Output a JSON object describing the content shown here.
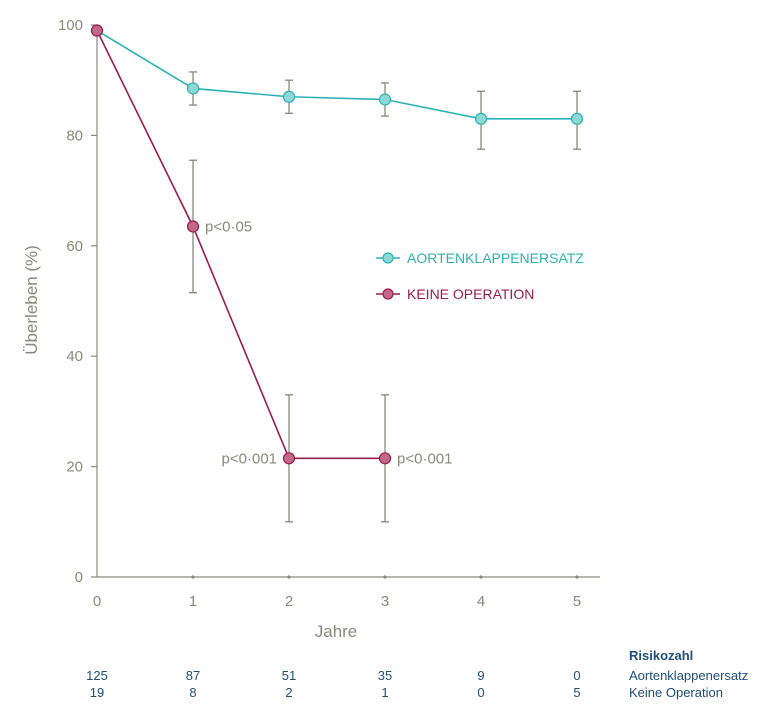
{
  "chart_data": {
    "type": "line",
    "xlabel": "Jahre",
    "ylabel": "Überleben (%)",
    "x": [
      0,
      1,
      2,
      3,
      4,
      5
    ],
    "x_ticks": [
      "0",
      "1",
      "2",
      "3",
      "4",
      "5"
    ],
    "y_ticks": [
      "0",
      "20",
      "40",
      "60",
      "80",
      "100"
    ],
    "xlim": [
      0,
      5
    ],
    "ylim": [
      0,
      100
    ],
    "grid": false,
    "legend_position": "right",
    "series": [
      {
        "name": "AORTENKLAPPENERSATZ",
        "color": "#2bb3b3",
        "marker_fill": "#8fd8d8",
        "x": [
          0,
          1,
          2,
          3,
          4,
          5
        ],
        "y": [
          99,
          88.5,
          87,
          86.5,
          83,
          83
        ],
        "err_low": [
          null,
          85.5,
          84,
          83.5,
          77.5,
          77.5
        ],
        "err_high": [
          null,
          91.5,
          90,
          89.5,
          88,
          88
        ]
      },
      {
        "name": "KEINE OPERATION",
        "color": "#9b1c4f",
        "marker_fill": "#c06a86",
        "x": [
          0,
          1,
          2,
          3
        ],
        "y": [
          99,
          63.5,
          21.5,
          21.5
        ],
        "err_low": [
          null,
          51.5,
          10,
          10
        ],
        "err_high": [
          null,
          75.5,
          33,
          33
        ]
      }
    ],
    "annotations": [
      {
        "text": "p<0·05",
        "x": 1,
        "y": 63.5,
        "side": "right"
      },
      {
        "text": "p<0·001",
        "x": 2,
        "y": 21.5,
        "side": "left"
      },
      {
        "text": "p<0·001",
        "x": 3,
        "y": 21.5,
        "side": "right"
      }
    ],
    "risk_table": {
      "title": "Risikozahl",
      "rows": [
        {
          "label": "Aortenklappenersatz",
          "values": [
            "125",
            "87",
            "51",
            "35",
            "9",
            "0"
          ]
        },
        {
          "label": "Keine Operation",
          "values": [
            "19",
            "8",
            "2",
            "1",
            "0",
            "5"
          ]
        }
      ]
    }
  }
}
